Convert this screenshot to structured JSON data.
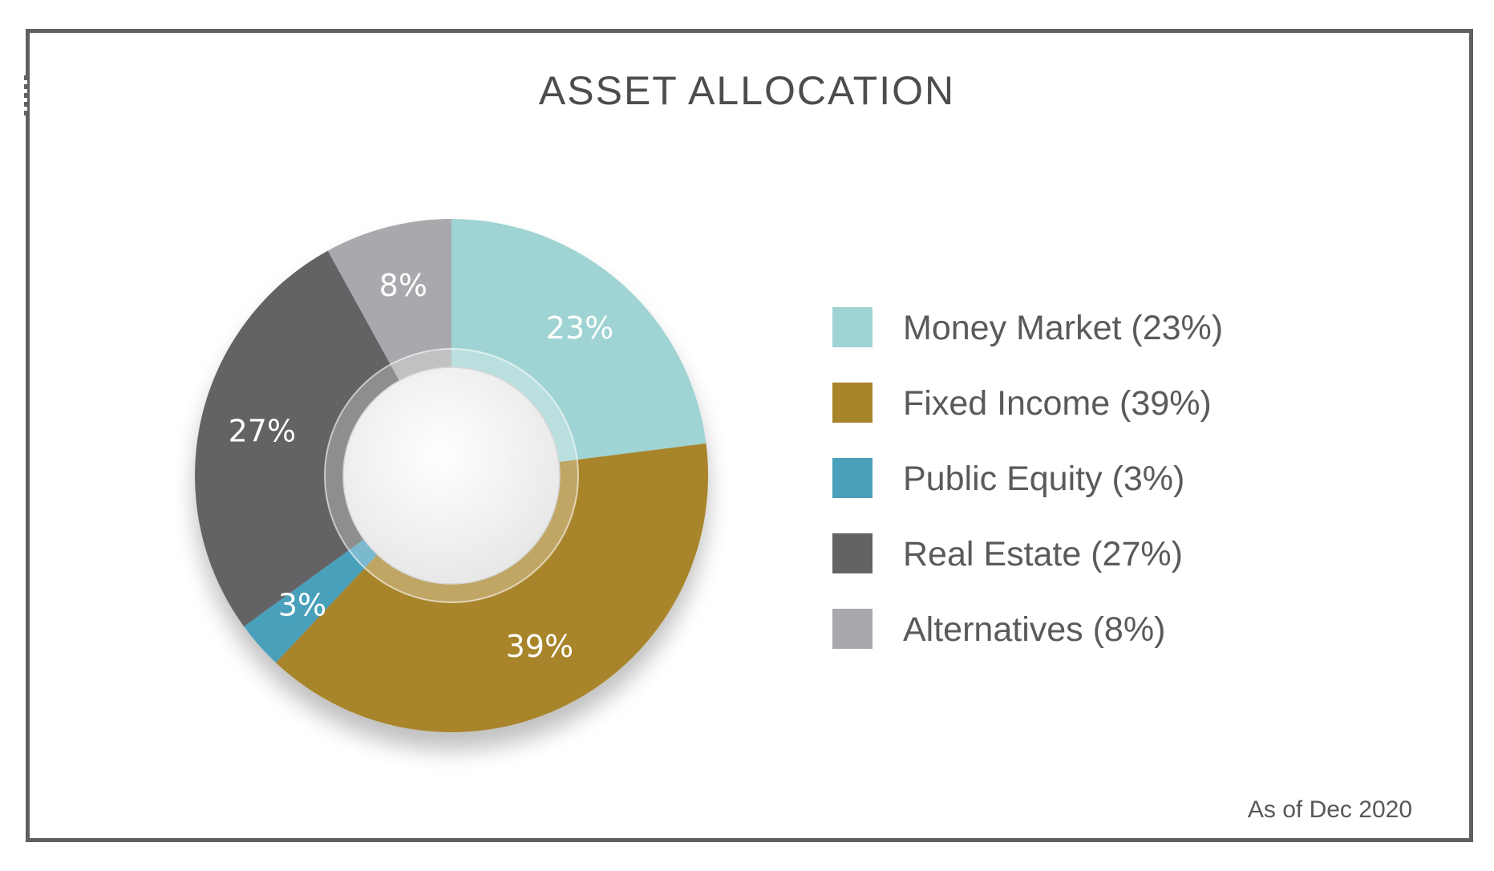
{
  "chart_data": {
    "type": "pie",
    "title": "ASSET ALLOCATION",
    "series": [
      {
        "name": "Money Market",
        "value": 23,
        "label": "23%",
        "legend": "Money Market (23%)",
        "color": "#a0d3d3"
      },
      {
        "name": "Fixed Income",
        "value": 39,
        "label": "39%",
        "legend": "Fixed Income (39%)",
        "color": "#a8842a"
      },
      {
        "name": "Public Equity",
        "value": 3,
        "label": "3%",
        "legend": "Public Equity (3%)",
        "color": "#4aa0bb"
      },
      {
        "name": "Real Estate",
        "value": 27,
        "label": "27%",
        "legend": "Real Estate (27%)",
        "color": "#636365"
      },
      {
        "name": "Alternatives",
        "value": 8,
        "label": "8%",
        "legend": "Alternatives (8%)",
        "color": "#a9a9ad"
      }
    ],
    "legend_position": "right",
    "style": "donut"
  },
  "footnote": "As of Dec 2020"
}
